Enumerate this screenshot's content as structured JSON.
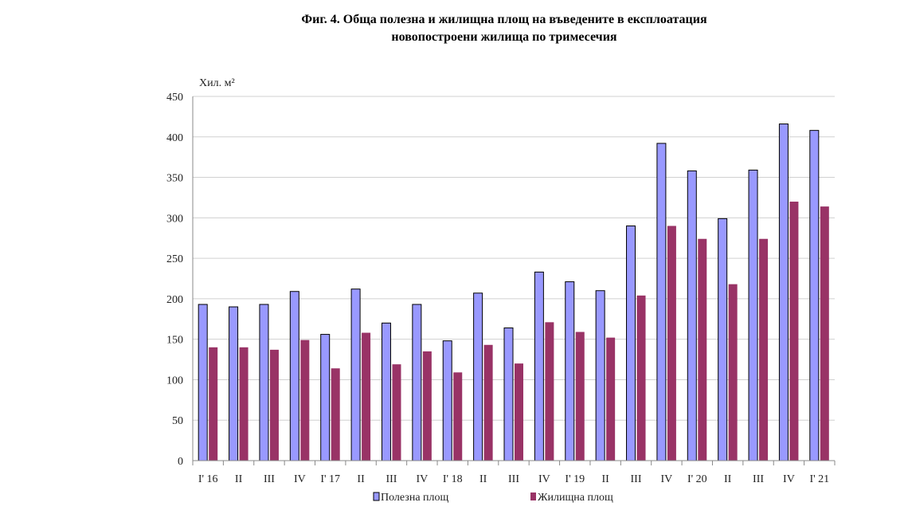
{
  "title_line1": "Фиг. 4. Обща полезна и жилищна площ на въведените в експлоатация",
  "title_line2": "новопостроени жилища по тримесечия",
  "chart_data": {
    "type": "bar",
    "ylabel": "Хил. м²",
    "ylim": [
      0,
      450
    ],
    "yticks": [
      0,
      50,
      100,
      150,
      200,
      250,
      300,
      350,
      400,
      450
    ],
    "grid": true,
    "legend_position": "bottom",
    "categories": [
      "I' 16",
      "II",
      "III",
      "IV",
      "I' 17",
      "II",
      "III",
      "IV",
      "I' 18",
      "II",
      "III",
      "IV",
      "I' 19",
      "II",
      "III",
      "IV",
      "I' 20",
      "II",
      "III",
      "IV",
      "I' 21"
    ],
    "series": [
      {
        "name": "Полезна площ",
        "color": "#9999ff",
        "values": [
          193,
          190,
          193,
          209,
          156,
          212,
          170,
          193,
          148,
          207,
          164,
          233,
          221,
          210,
          290,
          392,
          358,
          299,
          359,
          416,
          408
        ]
      },
      {
        "name": "Жилищна площ",
        "color": "#993366",
        "values": [
          140,
          140,
          137,
          149,
          114,
          158,
          119,
          135,
          109,
          143,
          120,
          171,
          159,
          152,
          204,
          290,
          274,
          218,
          274,
          320,
          314
        ]
      }
    ]
  }
}
